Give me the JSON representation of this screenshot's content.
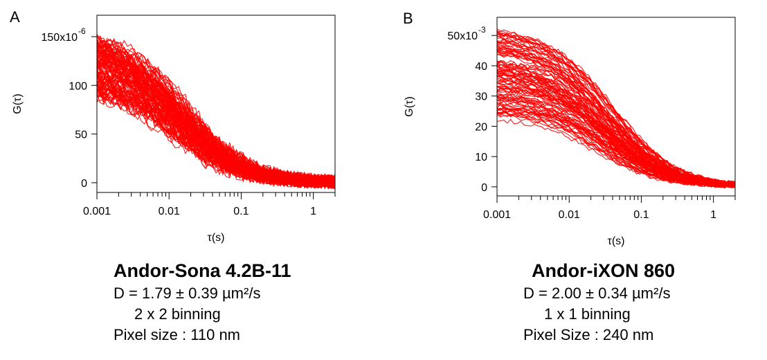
{
  "panels": [
    {
      "letter": "A",
      "caption": {
        "title": "Andor-Sona 4.2B-11",
        "diffusion": "D = 1.79 ± 0.39 µm²/s",
        "binning": "2 x 2 binning",
        "pixel": "Pixel size : 110 nm"
      }
    },
    {
      "letter": "B",
      "caption": {
        "title": "Andor-iXON 860",
        "diffusion": "D = 2.00 ± 0.34 µm²/s",
        "binning": "1 x 1 binning",
        "pixel": "Pixel Size : 240 nm"
      }
    }
  ],
  "chart_data": [
    {
      "type": "line",
      "xlabel": "τ(s)",
      "ylabel": "G(τ)",
      "xscale": "log",
      "xlim": [
        0.001,
        2
      ],
      "ylim": [
        -10,
        172
      ],
      "xticks": [
        0.001,
        0.01,
        0.1,
        1
      ],
      "xtick_labels": [
        "0.001",
        "0.01",
        "0.1",
        "1"
      ],
      "yticks": [
        0,
        50,
        100,
        150
      ],
      "ytick_labels": [
        "0",
        "50",
        "100",
        "150x10"
      ],
      "ytick_exponent": "-6",
      "color": "#ff0000",
      "curve_model": "G0 / (1 + tau/tauD)",
      "n_curves": 120,
      "G0_range": [
        95,
        160
      ],
      "tauD_range": [
        0.009,
        0.02
      ],
      "noise": 7,
      "seed": 11
    },
    {
      "type": "line",
      "xlabel": "τ(s)",
      "ylabel": "G(τ)",
      "xscale": "log",
      "xlim": [
        0.001,
        2
      ],
      "ylim": [
        -3,
        56
      ],
      "xticks": [
        0.001,
        0.01,
        0.1,
        1
      ],
      "xtick_labels": [
        "0.001",
        "0.01",
        "0.1",
        "1"
      ],
      "yticks": [
        0,
        10,
        20,
        30,
        40,
        50
      ],
      "ytick_labels": [
        "0",
        "10",
        "20",
        "30",
        "40",
        "50x10"
      ],
      "ytick_exponent": "-3",
      "color": "#ff0000",
      "curve_model": "G0 / (1 + tau/tauD)",
      "n_curves": 110,
      "G0_range": [
        23,
        54
      ],
      "tauD_range": [
        0.02,
        0.045
      ],
      "noise": 0.8,
      "seed": 7
    }
  ]
}
